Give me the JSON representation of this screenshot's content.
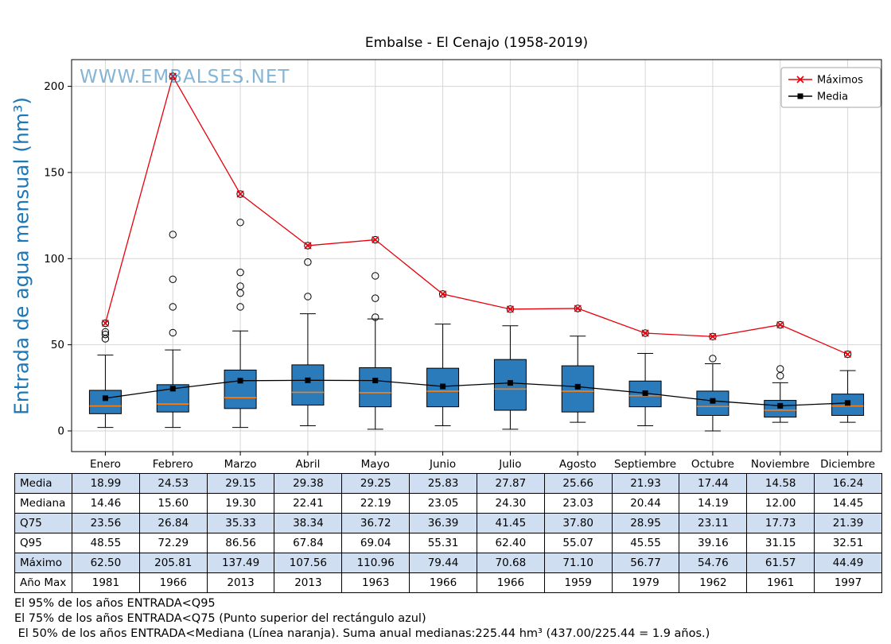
{
  "page": {
    "watermark": "WWW.EMBALSES.NET"
  },
  "chart_data": {
    "type": "boxplot",
    "title": "Embalse - El Cenajo (1958-2019)",
    "ylabel": "Entrada de agua mensual (hm³)",
    "categories": [
      "Enero",
      "Febrero",
      "Marzo",
      "Abril",
      "Mayo",
      "Junio",
      "Julio",
      "Agosto",
      "Septiembre",
      "Octubre",
      "Noviembre",
      "Diciembre"
    ],
    "ylim": [
      -12,
      215.5
    ],
    "yticks": [
      0,
      50,
      100,
      150,
      200
    ],
    "grid": true,
    "legend_position": "upper right",
    "series": [
      {
        "name": "Máximos",
        "color": "#e8000b",
        "marker": "x",
        "values": [
          62.5,
          205.81,
          137.49,
          107.56,
          110.96,
          79.44,
          70.68,
          71.1,
          56.77,
          54.76,
          61.57,
          44.49
        ]
      },
      {
        "name": "Media",
        "color": "#000000",
        "marker": "square",
        "values": [
          18.99,
          24.53,
          29.15,
          29.38,
          29.25,
          25.83,
          27.87,
          25.66,
          21.93,
          17.44,
          14.58,
          16.24
        ]
      }
    ],
    "boxplot": {
      "box_fill": "#2b7bba",
      "median_color": "#ff7f0e",
      "q1": [
        10,
        11,
        13,
        15,
        14,
        14,
        12,
        11,
        14,
        9,
        8,
        9
      ],
      "median": [
        14.46,
        15.6,
        19.3,
        22.41,
        22.19,
        23.05,
        24.3,
        23.03,
        20.44,
        14.19,
        12.0,
        14.45
      ],
      "q3": [
        23.56,
        26.84,
        35.33,
        38.34,
        36.72,
        36.39,
        41.45,
        37.8,
        28.95,
        23.11,
        17.73,
        21.39
      ],
      "whisker_low": [
        2,
        2,
        2,
        3,
        1,
        3,
        1,
        5,
        3,
        0,
        5,
        5
      ],
      "whisker_high": [
        44,
        47,
        58,
        68,
        65,
        62,
        61,
        55,
        45,
        39,
        28,
        35
      ],
      "outliers": [
        [
          53.5,
          56,
          57.5,
          62.5
        ],
        [
          57,
          72,
          88,
          114,
          205.81
        ],
        [
          72,
          80,
          84,
          92,
          121,
          137.49
        ],
        [
          78,
          98,
          107.56
        ],
        [
          66,
          77,
          90,
          110.96
        ],
        [
          79.44
        ],
        [
          70.68
        ],
        [
          71.1
        ],
        [
          56.77
        ],
        [
          42,
          54.76
        ],
        [
          32,
          36,
          61.57
        ],
        [
          44.49
        ]
      ]
    }
  },
  "table": {
    "row_shade_color": "#cfdff1",
    "rows": [
      {
        "label": "Media",
        "values": [
          "18.99",
          "24.53",
          "29.15",
          "29.38",
          "29.25",
          "25.83",
          "27.87",
          "25.66",
          "21.93",
          "17.44",
          "14.58",
          "16.24"
        ]
      },
      {
        "label": "Mediana",
        "values": [
          "14.46",
          "15.60",
          "19.30",
          "22.41",
          "22.19",
          "23.05",
          "24.30",
          "23.03",
          "20.44",
          "14.19",
          "12.00",
          "14.45"
        ]
      },
      {
        "label": "Q75",
        "values": [
          "23.56",
          "26.84",
          "35.33",
          "38.34",
          "36.72",
          "36.39",
          "41.45",
          "37.80",
          "28.95",
          "23.11",
          "17.73",
          "21.39"
        ]
      },
      {
        "label": "Q95",
        "values": [
          "48.55",
          "72.29",
          "86.56",
          "67.84",
          "69.04",
          "55.31",
          "62.40",
          "55.07",
          "45.55",
          "39.16",
          "31.15",
          "32.51"
        ]
      },
      {
        "label": "Máximo",
        "values": [
          "62.50",
          "205.81",
          "137.49",
          "107.56",
          "110.96",
          "79.44",
          "70.68",
          "71.10",
          "56.77",
          "54.76",
          "61.57",
          "44.49"
        ]
      },
      {
        "label": "Año Max",
        "values": [
          "1981",
          "1966",
          "2013",
          "2013",
          "1963",
          "1966",
          "1966",
          "1959",
          "1979",
          "1962",
          "1961",
          "1997"
        ]
      }
    ]
  },
  "footnotes": [
    "El 95% de los años ENTRADA<Q95",
    "El 75% de los años ENTRADA<Q75 (Punto superior del rectángulo azul)",
    " El 50% de los años ENTRADA<Mediana (Línea naranja). Suma anual medianas:225.44 hm³ (437.00/225.44 = 1.9 años.)"
  ]
}
